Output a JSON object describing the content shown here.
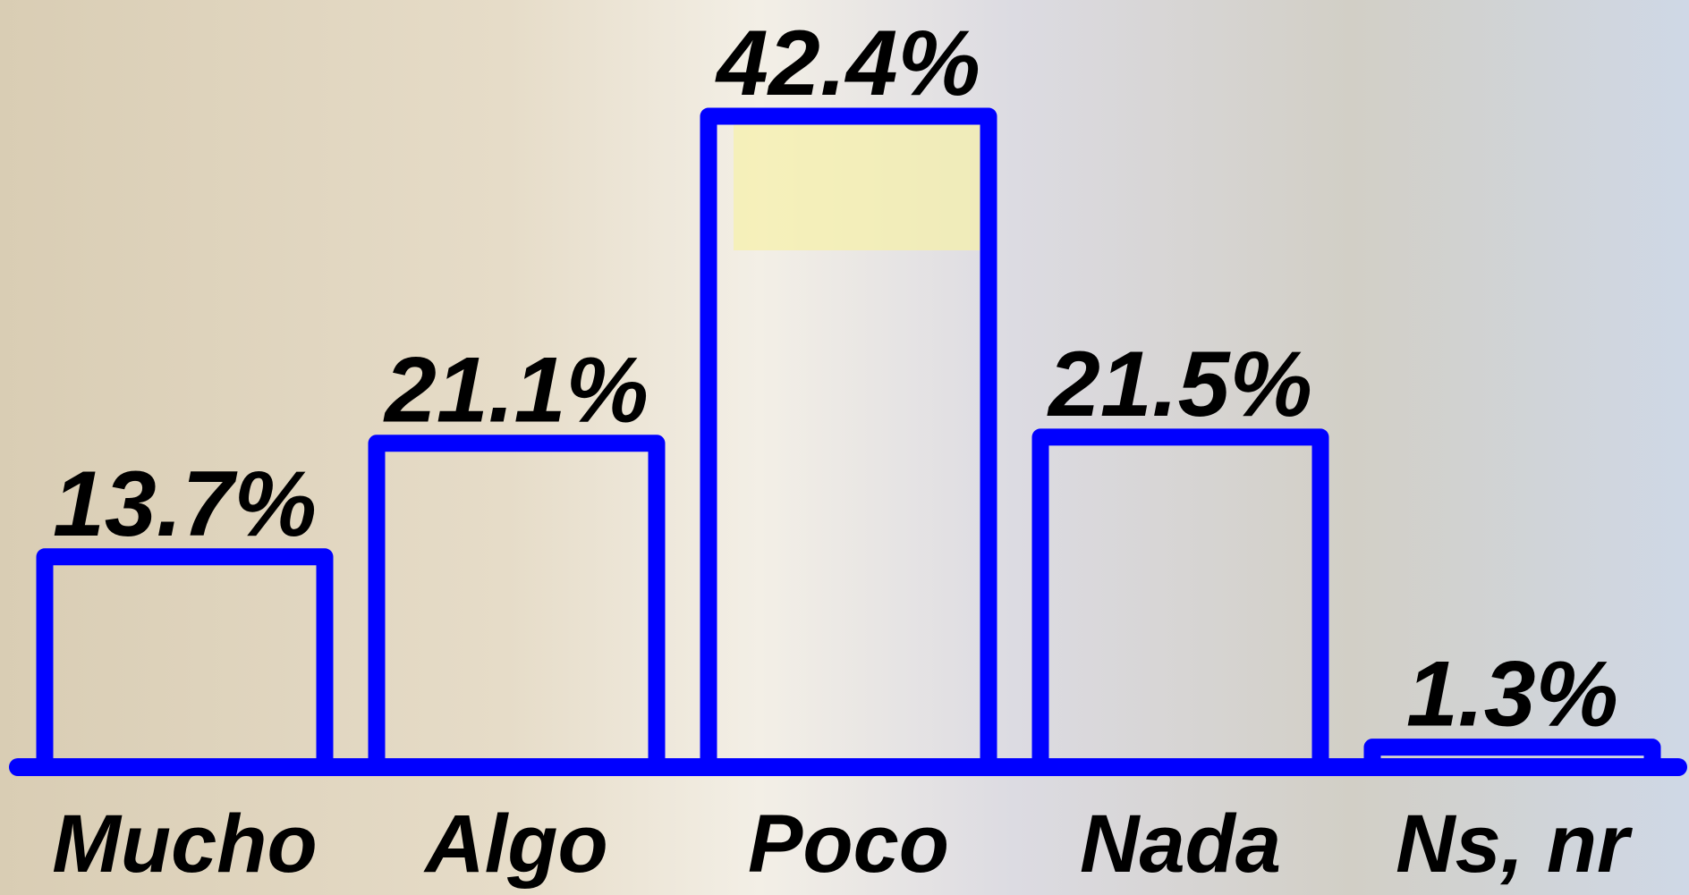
{
  "chart_data": {
    "type": "bar",
    "categories": [
      "Mucho",
      "Algo",
      "Poco",
      "Nada",
      "Ns, nr"
    ],
    "values": [
      13.7,
      21.1,
      42.4,
      21.5,
      1.3
    ],
    "value_labels": [
      "13.7%",
      "21.1%",
      "42.4%",
      "21.5%",
      "1.3%"
    ],
    "color": "#0000ff"
  }
}
